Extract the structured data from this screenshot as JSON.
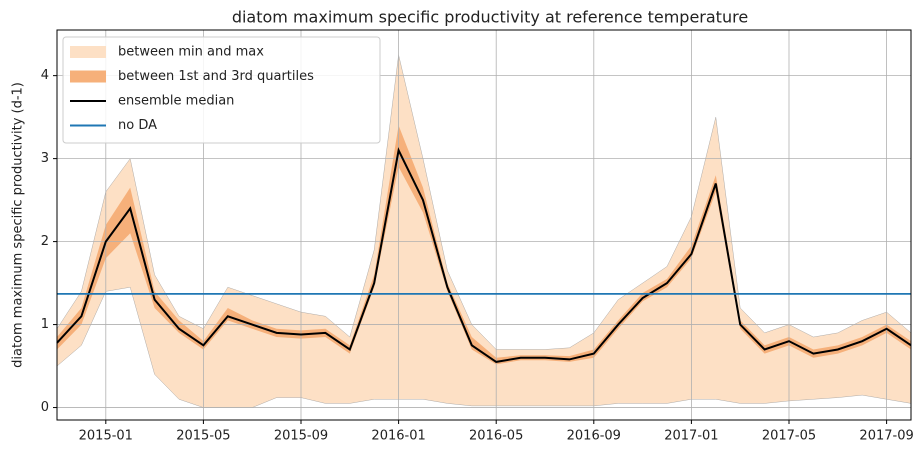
{
  "chart_data": {
    "type": "band-line",
    "title": "diatom maximum specific productivity at reference temperature",
    "y_label": "diatom maximum specific productivity (d-1)",
    "x": [
      "2014-11",
      "2014-12",
      "2015-01",
      "2015-02",
      "2015-03",
      "2015-04",
      "2015-05",
      "2015-06",
      "2015-07",
      "2015-08",
      "2015-09",
      "2015-10",
      "2015-11",
      "2015-12",
      "2016-01",
      "2016-02",
      "2016-03",
      "2016-04",
      "2016-05",
      "2016-06",
      "2016-07",
      "2016-08",
      "2016-09",
      "2016-10",
      "2016-11",
      "2016-12",
      "2017-01",
      "2017-02",
      "2017-03",
      "2017-04",
      "2017-05",
      "2017-06",
      "2017-07",
      "2017-08",
      "2017-09",
      "2017-10"
    ],
    "xlim": [
      "2014-11",
      "2017-10"
    ],
    "xticks": [
      "2015-01",
      "2015-05",
      "2015-09",
      "2016-01",
      "2016-05",
      "2016-09",
      "2017-01",
      "2017-05",
      "2017-09"
    ],
    "ylim": [
      -0.15,
      4.55
    ],
    "yticks": [
      0,
      1,
      2,
      3,
      4
    ],
    "grid": true,
    "legend": "upper left",
    "series": [
      {
        "name": "between min and max",
        "kind": "band",
        "color": "#fde0c5",
        "lower": [
          0.5,
          0.75,
          1.4,
          1.45,
          0.4,
          0.1,
          0,
          0,
          0,
          0.12,
          0.12,
          0.05,
          0.05,
          0.1,
          0.1,
          0.1,
          0.05,
          0.02,
          0.02,
          0.02,
          0.02,
          0.02,
          0.02,
          0.05,
          0.05,
          0.05,
          0.1,
          0.1,
          0.05,
          0.05,
          0.08,
          0.1,
          0.12,
          0.15,
          0.1,
          0.05
        ],
        "upper": [
          0.95,
          1.4,
          2.6,
          3.0,
          1.6,
          1.1,
          0.95,
          1.45,
          1.35,
          1.25,
          1.15,
          1.1,
          0.85,
          1.9,
          4.25,
          3.0,
          1.65,
          1.0,
          0.7,
          0.7,
          0.7,
          0.72,
          0.9,
          1.3,
          1.5,
          1.7,
          2.3,
          3.5,
          1.2,
          0.9,
          1.0,
          0.85,
          0.9,
          1.05,
          1.15,
          0.9
        ]
      },
      {
        "name": "between 1st and 3rd quartiles",
        "kind": "band",
        "color": "#f6b07a",
        "lower": [
          0.7,
          1.0,
          1.8,
          2.1,
          1.2,
          0.9,
          0.7,
          1.05,
          0.95,
          0.85,
          0.83,
          0.85,
          0.65,
          1.45,
          2.9,
          2.35,
          1.4,
          0.7,
          0.52,
          0.57,
          0.57,
          0.55,
          0.6,
          0.95,
          1.28,
          1.45,
          1.8,
          2.6,
          0.95,
          0.65,
          0.75,
          0.6,
          0.65,
          0.75,
          0.9,
          0.7
        ],
        "upper": [
          0.85,
          1.2,
          2.2,
          2.65,
          1.4,
          1.05,
          0.8,
          1.2,
          1.05,
          0.95,
          0.93,
          0.95,
          0.75,
          1.6,
          3.4,
          2.65,
          1.5,
          0.85,
          0.6,
          0.63,
          0.63,
          0.62,
          0.7,
          1.05,
          1.38,
          1.55,
          1.95,
          2.8,
          1.05,
          0.75,
          0.85,
          0.7,
          0.75,
          0.85,
          1.0,
          0.8
        ]
      },
      {
        "name": "ensemble median",
        "kind": "line",
        "color": "#000000",
        "values": [
          0.78,
          1.1,
          2.0,
          2.4,
          1.3,
          0.95,
          0.75,
          1.1,
          1.0,
          0.9,
          0.88,
          0.9,
          0.7,
          1.5,
          3.1,
          2.5,
          1.45,
          0.75,
          0.55,
          0.6,
          0.6,
          0.58,
          0.65,
          1.0,
          1.32,
          1.5,
          1.85,
          2.7,
          1.0,
          0.7,
          0.8,
          0.65,
          0.7,
          0.8,
          0.95,
          0.75
        ]
      },
      {
        "name": "no DA",
        "kind": "line",
        "color": "#1f77b4",
        "values": [
          1.37,
          1.37,
          1.37,
          1.37,
          1.37,
          1.37,
          1.37,
          1.37,
          1.37,
          1.37,
          1.37,
          1.37,
          1.37,
          1.37,
          1.37,
          1.37,
          1.37,
          1.37,
          1.37,
          1.37,
          1.37,
          1.37,
          1.37,
          1.37,
          1.37,
          1.37,
          1.37,
          1.37,
          1.37,
          1.37,
          1.37,
          1.37,
          1.37,
          1.37,
          1.37,
          1.37
        ]
      }
    ]
  }
}
